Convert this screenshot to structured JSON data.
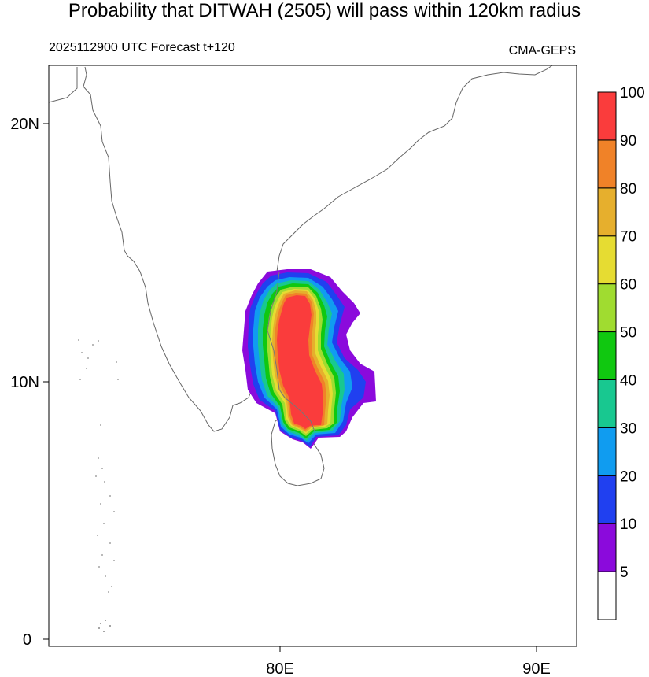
{
  "title": "Probability that DITWAH (2505) will pass within 120km radius",
  "subtitle_left": "2025112900 UTC Forecast t+120",
  "subtitle_right": "CMA-GEPS",
  "map": {
    "lon_ticks": [
      {
        "value": 80,
        "label": "80E"
      },
      {
        "value": 90,
        "label": "90E"
      }
    ],
    "lat_ticks": [
      {
        "value": 20,
        "label": "20N"
      },
      {
        "value": 10,
        "label": "10N"
      },
      {
        "value": 0,
        "label": "0"
      }
    ]
  },
  "colorbar": {
    "levels": [
      {
        "label": "5",
        "color": "#ffffff"
      },
      {
        "label": "10",
        "color": "#8b0adc"
      },
      {
        "label": "20",
        "color": "#2040f0"
      },
      {
        "label": "30",
        "color": "#109cf0"
      },
      {
        "label": "40",
        "color": "#18c890"
      },
      {
        "label": "50",
        "color": "#10c810"
      },
      {
        "label": "60",
        "color": "#a0dc30"
      },
      {
        "label": "70",
        "color": "#e6dc32"
      },
      {
        "label": "80",
        "color": "#e6af2d"
      },
      {
        "label": "90",
        "color": "#f08228"
      },
      {
        "label": "100",
        "color": "#fa3c3c"
      }
    ]
  }
}
